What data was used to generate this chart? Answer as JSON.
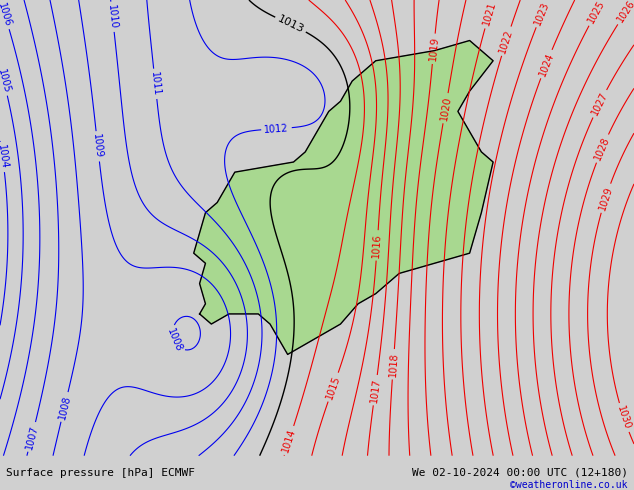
{
  "bottom_left_text": "Surface pressure [hPa] ECMWF",
  "bottom_right_text": "We 02-10-2024 00:00 UTC (12+180)",
  "copyright_text": "©weatheronline.co.uk",
  "bg_color": "#d0d0d0",
  "land_color": "#a8d890",
  "sea_color": "#d0d0d0",
  "lake_color": "#c8c8c8",
  "coast_color": "#888888",
  "border_color": "#000000",
  "contour_blue": "#0000ee",
  "contour_red": "#ee0000",
  "contour_black": "#000000",
  "bar_color": "#e0e0e0",
  "text_color": "#000000",
  "copy_color": "#0000cc",
  "lon_min": -12,
  "lon_max": 42,
  "lat_min": 51,
  "lat_max": 73.5,
  "figw": 6.34,
  "figh": 4.9,
  "dpi": 100,
  "label_fs": 7,
  "bar_fs": 8,
  "copy_fs": 7
}
